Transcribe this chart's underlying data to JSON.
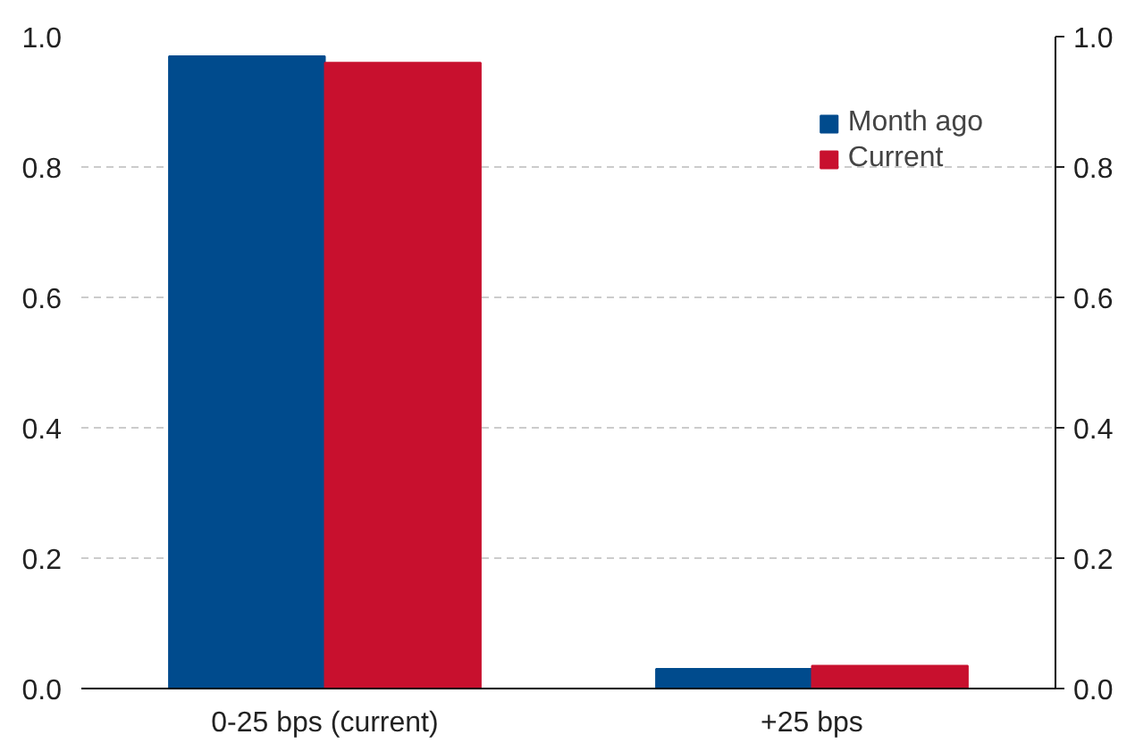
{
  "chart_data": {
    "type": "bar",
    "categories": [
      "0-25 bps (current)",
      "+25 bps"
    ],
    "series": [
      {
        "name": "Month ago",
        "color": "#004b8d",
        "values": [
          0.97,
          0.03
        ]
      },
      {
        "name": "Current",
        "color": "#c8102e",
        "values": [
          0.96,
          0.035
        ]
      }
    ],
    "ylim": [
      0,
      1.0
    ],
    "yticks": [
      {
        "value": 0,
        "label": "0.0"
      },
      0.2,
      0.4,
      0.6,
      0.8,
      {
        "value": 1,
        "label": "1.0"
      }
    ],
    "y2lim": [
      0,
      1.0
    ],
    "y2ticks": [
      {
        "value": 0,
        "label": "0.0"
      },
      0.2,
      0.4,
      0.6,
      0.8,
      {
        "value": 1,
        "label": "1.0"
      }
    ],
    "grid": "y",
    "legend": "top right"
  }
}
